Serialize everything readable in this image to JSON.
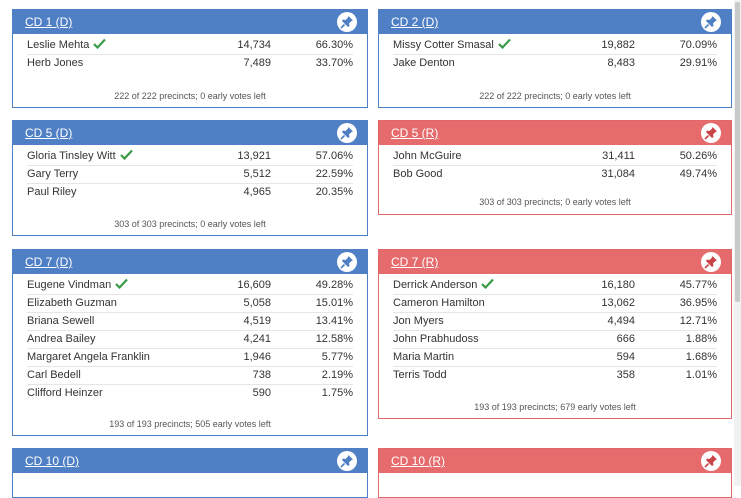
{
  "colors": {
    "dem": "#4f7fc4",
    "rep": "#e66b6d",
    "winner_check": "#3a9a46"
  },
  "cards": {
    "cd1": {
      "title": "CD 1 (D)",
      "rows": [
        {
          "name": "Leslie Mehta",
          "votes": "14,734",
          "pct": "66.30%",
          "winner": true
        },
        {
          "name": "Herb Jones",
          "votes": "7,489",
          "pct": "33.70%",
          "winner": false
        }
      ],
      "footer": "222 of 222 precincts; 0 early votes left"
    },
    "cd2": {
      "title": "CD 2 (D)",
      "rows": [
        {
          "name": "Missy Cotter Smasal",
          "votes": "19,882",
          "pct": "70.09%",
          "winner": true
        },
        {
          "name": "Jake Denton",
          "votes": "8,483",
          "pct": "29.91%",
          "winner": false
        }
      ],
      "footer": "222 of 222 precincts; 0 early votes left"
    },
    "cd5d": {
      "title": "CD 5 (D)",
      "rows": [
        {
          "name": "Gloria Tinsley Witt",
          "votes": "13,921",
          "pct": "57.06%",
          "winner": true
        },
        {
          "name": "Gary Terry",
          "votes": "5,512",
          "pct": "22.59%",
          "winner": false
        },
        {
          "name": "Paul Riley",
          "votes": "4,965",
          "pct": "20.35%",
          "winner": false
        }
      ],
      "footer": "303 of 303 precincts; 0 early votes left"
    },
    "cd5r": {
      "title": "CD 5 (R)",
      "rows": [
        {
          "name": "John McGuire",
          "votes": "31,411",
          "pct": "50.26%",
          "winner": false
        },
        {
          "name": "Bob Good",
          "votes": "31,084",
          "pct": "49.74%",
          "winner": false
        }
      ],
      "footer": "303 of 303 precincts; 0 early votes left"
    },
    "cd7d": {
      "title": "CD 7 (D)",
      "rows": [
        {
          "name": "Eugene Vindman",
          "votes": "16,609",
          "pct": "49.28%",
          "winner": true
        },
        {
          "name": "Elizabeth Guzman",
          "votes": "5,058",
          "pct": "15.01%",
          "winner": false
        },
        {
          "name": "Briana Sewell",
          "votes": "4,519",
          "pct": "13.41%",
          "winner": false
        },
        {
          "name": "Andrea Bailey",
          "votes": "4,241",
          "pct": "12.58%",
          "winner": false
        },
        {
          "name": "Margaret Angela Franklin",
          "votes": "1,946",
          "pct": "5.77%",
          "winner": false
        },
        {
          "name": "Carl Bedell",
          "votes": "738",
          "pct": "2.19%",
          "winner": false
        },
        {
          "name": "Clifford Heinzer",
          "votes": "590",
          "pct": "1.75%",
          "winner": false
        }
      ],
      "footer": "193 of 193 precincts; 505 early votes left"
    },
    "cd7r": {
      "title": "CD 7 (R)",
      "rows": [
        {
          "name": "Derrick Anderson",
          "votes": "16,180",
          "pct": "45.77%",
          "winner": true
        },
        {
          "name": "Cameron Hamilton",
          "votes": "13,062",
          "pct": "36.95%",
          "winner": false
        },
        {
          "name": "Jon Myers",
          "votes": "4,494",
          "pct": "12.71%",
          "winner": false
        },
        {
          "name": "John Prabhudoss",
          "votes": "666",
          "pct": "1.88%",
          "winner": false
        },
        {
          "name": "Maria Martin",
          "votes": "594",
          "pct": "1.68%",
          "winner": false
        },
        {
          "name": "Terris Todd",
          "votes": "358",
          "pct": "1.01%",
          "winner": false
        }
      ],
      "footer": "193 of 193 precincts; 679 early votes left"
    },
    "cd10d": {
      "title": "CD 10 (D)",
      "rows": [],
      "footer": ""
    },
    "cd10r": {
      "title": "CD 10 (R)",
      "rows": [],
      "footer": ""
    }
  }
}
